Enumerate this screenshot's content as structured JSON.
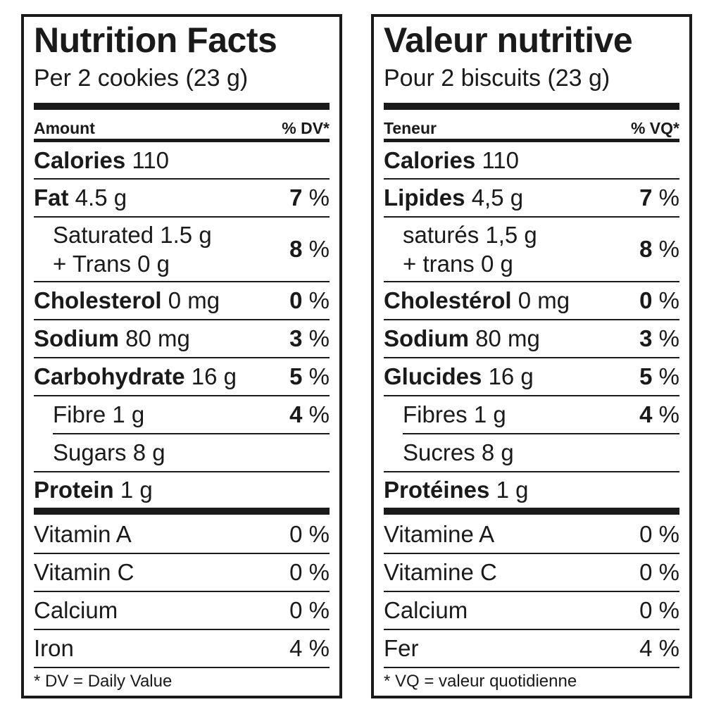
{
  "en": {
    "title": "Nutrition Facts",
    "serving": "Per 2 cookies (23 g)",
    "col_amount": "Amount",
    "col_dv": "% DV*",
    "calories_label": "Calories",
    "calories_value": "110",
    "fat_label": "Fat",
    "fat_value": "4.5 g",
    "fat_pct": "7",
    "sat_line": "Saturated 1.5 g",
    "trans_line": "+ Trans 0 g",
    "sat_pct": "8",
    "chol_label": "Cholesterol",
    "chol_value": "0 mg",
    "chol_pct": "0",
    "sodium_label": "Sodium",
    "sodium_value": "80 mg",
    "sodium_pct": "3",
    "carb_label": "Carbohydrate",
    "carb_value": "16 g",
    "carb_pct": "5",
    "fibre_line": "Fibre 1 g",
    "fibre_pct": "4",
    "sugars_line": "Sugars 8 g",
    "protein_label": "Protein",
    "protein_value": "1 g",
    "vitA_label": "Vitamin A",
    "vitA_pct": "0 %",
    "vitC_label": "Vitamin C",
    "vitC_pct": "0 %",
    "calcium_label": "Calcium",
    "calcium_pct": "0 %",
    "iron_label": "Iron",
    "iron_pct": "4 %",
    "percent_sign": "%",
    "footnote": "* DV = Daily Value"
  },
  "fr": {
    "title": "Valeur nutritive",
    "serving": "Pour 2 biscuits (23 g)",
    "col_amount": "Teneur",
    "col_dv": "% VQ*",
    "calories_label": "Calories",
    "calories_value": "110",
    "fat_label": "Lipides",
    "fat_value": "4,5 g",
    "fat_pct": "7",
    "sat_line": "saturés 1,5 g",
    "trans_line": "+ trans 0 g",
    "sat_pct": "8",
    "chol_label": "Cholestérol",
    "chol_value": "0 mg",
    "chol_pct": "0",
    "sodium_label": "Sodium",
    "sodium_value": "80 mg",
    "sodium_pct": "3",
    "carb_label": "Glucides",
    "carb_value": "16 g",
    "carb_pct": "5",
    "fibre_line": "Fibres 1 g",
    "fibre_pct": "4",
    "sugars_line": "Sucres 8 g",
    "protein_label": "Protéines",
    "protein_value": "1 g",
    "vitA_label": "Vitamine A",
    "vitA_pct": "0 %",
    "vitC_label": "Vitamine C",
    "vitC_pct": "0 %",
    "calcium_label": "Calcium",
    "calcium_pct": "0 %",
    "iron_label": "Fer",
    "iron_pct": "4 %",
    "percent_sign": "%",
    "footnote": "* VQ = valeur quotidienne"
  }
}
